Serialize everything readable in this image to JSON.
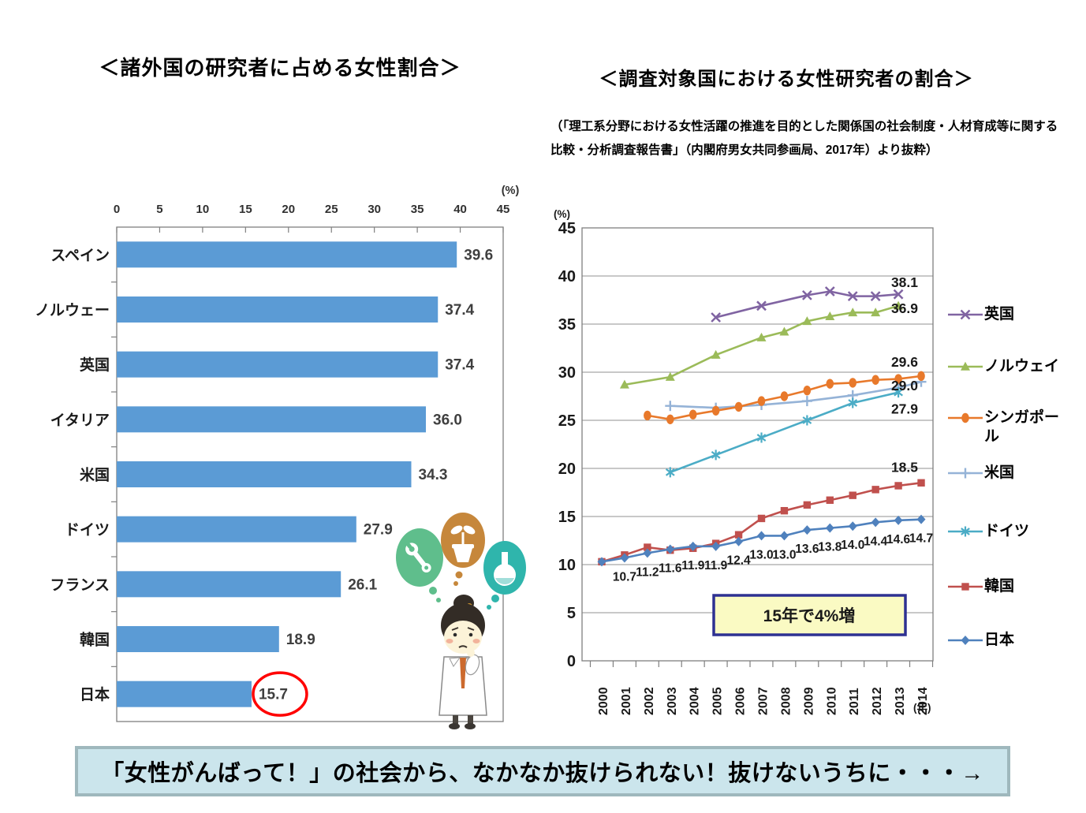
{
  "banner": {
    "text": "「女性がんばって！」の社会から、なかなか抜けられない！抜けないうちに・・・→",
    "bg": "#CBE5EC",
    "border": "#9FB8BD"
  },
  "illustration": {
    "name": "thinking-female-researcher",
    "thought_icons": [
      "wrench",
      "sprout-pot",
      "flask"
    ],
    "bubble_colors": {
      "wrench": "#5FBE8C",
      "sprout-pot": "#C6873B",
      "flask": "#2FB5AC"
    },
    "skin_color": "#FCF3D8",
    "hair_color": "#332C26",
    "tie_color": "#CC6A2E"
  },
  "chart_data": [
    {
      "id": "bar-foreign-researchers",
      "type": "bar",
      "orientation": "horizontal",
      "title": "＜諸外国の研究者に占める女性割合＞",
      "axis_unit": "(%)",
      "categories": [
        "スペイン",
        "ノルウェー",
        "英国",
        "イタリア",
        "米国",
        "ドイツ",
        "フランス",
        "韓国",
        "日本"
      ],
      "values": [
        39.6,
        37.4,
        37.4,
        36.0,
        34.3,
        27.9,
        26.1,
        18.9,
        15.7
      ],
      "xlim": [
        0,
        45
      ],
      "xticks": [
        0,
        5,
        10,
        15,
        20,
        25,
        30,
        35,
        40,
        45
      ],
      "bar_color": "#5B9BD5",
      "grid": false,
      "highlight": {
        "category": "日本",
        "style": "red-ellipse",
        "color": "#FF0000"
      }
    },
    {
      "id": "line-women-researchers",
      "type": "line",
      "title": "＜調査対象国における女性研究者の割合＞",
      "subtitle": "（「理工系分野における女性活躍の推進を目的とした関係国の社会制度・人材育成等に関する比較・分析調査報告書」（内閣府男女共同参画局、2017年）より抜粋）",
      "ylabel_unit": "(%)",
      "xlabel_unit": "(年)",
      "ylim": [
        0,
        45
      ],
      "yticks": [
        0,
        5,
        10,
        15,
        20,
        25,
        30,
        35,
        40,
        45
      ],
      "x": [
        2000,
        2001,
        2002,
        2003,
        2004,
        2005,
        2006,
        2007,
        2008,
        2009,
        2010,
        2011,
        2012,
        2013,
        2014
      ],
      "grid": true,
      "legend_position": "right",
      "series": [
        {
          "name": "英国",
          "color": "#8064A2",
          "marker": "x",
          "points": [
            [
              2005,
              35.7
            ],
            [
              2007,
              36.9
            ],
            [
              2009,
              38.0
            ],
            [
              2010,
              38.4
            ],
            [
              2011,
              37.9
            ],
            [
              2012,
              37.9
            ],
            [
              2013,
              38.1
            ]
          ],
          "end_label": "38.1"
        },
        {
          "name": "ノルウェイ",
          "color": "#9BBB59",
          "marker": "triangle",
          "points": [
            [
              2001,
              28.7
            ],
            [
              2003,
              29.5
            ],
            [
              2005,
              31.8
            ],
            [
              2007,
              33.6
            ],
            [
              2008,
              34.2
            ],
            [
              2009,
              35.3
            ],
            [
              2010,
              35.8
            ],
            [
              2011,
              36.2
            ],
            [
              2012,
              36.2
            ],
            [
              2013,
              36.9
            ]
          ],
          "end_label": "36.9"
        },
        {
          "name": "シンガポール",
          "color": "#E8792B",
          "marker": "circle",
          "points": [
            [
              2002,
              25.5
            ],
            [
              2003,
              25.1
            ],
            [
              2004,
              25.6
            ],
            [
              2005,
              26.0
            ],
            [
              2006,
              26.4
            ],
            [
              2007,
              27.0
            ],
            [
              2008,
              27.5
            ],
            [
              2009,
              28.1
            ],
            [
              2010,
              28.8
            ],
            [
              2011,
              28.9
            ],
            [
              2012,
              29.2
            ],
            [
              2013,
              29.3
            ],
            [
              2014,
              29.6
            ]
          ],
          "end_label": "29.6"
        },
        {
          "name": "米国",
          "color": "#95B3D7",
          "marker": "plus",
          "points": [
            [
              2003,
              26.5
            ],
            [
              2005,
              26.3
            ],
            [
              2007,
              26.6
            ],
            [
              2009,
              27.0
            ],
            [
              2011,
              27.6
            ],
            [
              2013,
              28.4
            ],
            [
              2014,
              29.0
            ]
          ],
          "end_label": "29.0"
        },
        {
          "name": "ドイツ",
          "color": "#4BACC6",
          "marker": "asterisk",
          "points": [
            [
              2003,
              19.6
            ],
            [
              2005,
              21.4
            ],
            [
              2007,
              23.2
            ],
            [
              2009,
              25.0
            ],
            [
              2011,
              26.8
            ],
            [
              2013,
              27.9
            ]
          ],
          "end_label": "27.9"
        },
        {
          "name": "韓国",
          "color": "#C0504D",
          "marker": "square",
          "points": [
            [
              2000,
              10.3
            ],
            [
              2001,
              11.0
            ],
            [
              2002,
              11.8
            ],
            [
              2003,
              11.5
            ],
            [
              2004,
              11.7
            ],
            [
              2005,
              12.2
            ],
            [
              2006,
              13.1
            ],
            [
              2007,
              14.8
            ],
            [
              2008,
              15.6
            ],
            [
              2009,
              16.2
            ],
            [
              2010,
              16.7
            ],
            [
              2011,
              17.2
            ],
            [
              2012,
              17.8
            ],
            [
              2013,
              18.2
            ],
            [
              2014,
              18.5
            ]
          ],
          "end_label": "18.5"
        },
        {
          "name": "日本",
          "color": "#4F81BD",
          "marker": "diamond",
          "points": [
            [
              2000,
              10.3
            ],
            [
              2001,
              10.7
            ],
            [
              2002,
              11.2
            ],
            [
              2003,
              11.6
            ],
            [
              2004,
              11.9
            ],
            [
              2005,
              11.9
            ],
            [
              2006,
              12.4
            ],
            [
              2007,
              13.0
            ],
            [
              2008,
              13.0
            ],
            [
              2009,
              13.6
            ],
            [
              2010,
              13.8
            ],
            [
              2011,
              14.0
            ],
            [
              2012,
              14.4
            ],
            [
              2013,
              14.6
            ],
            [
              2014,
              14.7
            ]
          ],
          "point_labels": [
            "",
            "10.7",
            "11.2",
            "11.6",
            "11.9",
            "11.9",
            "12.4",
            "13.0",
            "13.0",
            "13.6",
            "13.8",
            "14.0",
            "14.4",
            "14.6",
            "14.7"
          ]
        }
      ],
      "annotation": {
        "text": "15年で4%増",
        "fill": "#FAFAC3",
        "border": "#2E3192"
      }
    }
  ]
}
